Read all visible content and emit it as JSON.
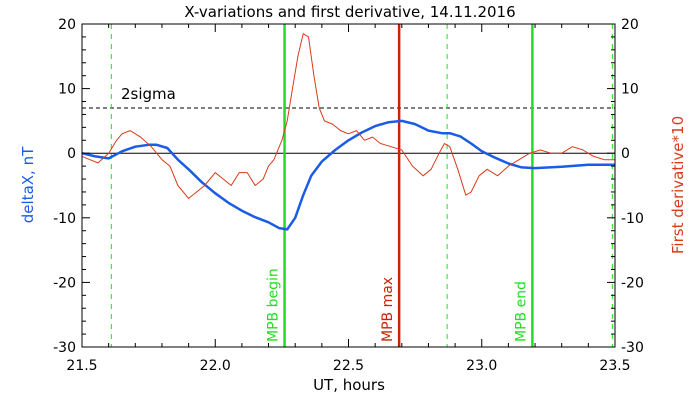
{
  "chart_data": {
    "type": "line",
    "title": "X-variations and first derivative, 14.11.2016",
    "xlabel": "UT, hours",
    "ylabel_left": "deltaX, nT",
    "ylabel_right": "First derivative*10",
    "xlim": [
      21.5,
      23.5
    ],
    "ylim": [
      -30,
      20
    ],
    "xticks": [
      "21.5",
      "22.0",
      "22.5",
      "23.0",
      "23.5"
    ],
    "yticks": [
      "-30",
      "-20",
      "-10",
      "0",
      "10",
      "20"
    ],
    "series": [
      {
        "name": "deltaX",
        "color": "#1a5ce6",
        "x": [
          21.5,
          21.55,
          21.6,
          21.65,
          21.7,
          21.75,
          21.78,
          21.82,
          21.86,
          21.9,
          21.95,
          22.0,
          22.05,
          22.1,
          22.15,
          22.2,
          22.24,
          22.27,
          22.3,
          22.33,
          22.36,
          22.4,
          22.45,
          22.5,
          22.55,
          22.6,
          22.65,
          22.7,
          22.75,
          22.8,
          22.85,
          22.88,
          22.92,
          22.96,
          23.0,
          23.05,
          23.1,
          23.15,
          23.2,
          23.3,
          23.4,
          23.5
        ],
        "values": [
          0,
          -0.5,
          -0.8,
          0.3,
          1.0,
          1.3,
          1.3,
          0.8,
          -1.0,
          -2.5,
          -4.5,
          -6.2,
          -7.7,
          -8.9,
          -9.9,
          -10.7,
          -11.6,
          -11.8,
          -10.0,
          -6.5,
          -3.5,
          -1.3,
          0.5,
          2.0,
          3.2,
          4.2,
          4.8,
          5.0,
          4.5,
          3.5,
          3.1,
          3.1,
          2.6,
          1.5,
          0.3,
          -0.7,
          -1.6,
          -2.2,
          -2.3,
          -2.1,
          -1.8,
          -1.8
        ]
      },
      {
        "name": "First derivative*10",
        "color": "#d93a1a",
        "x": [
          21.5,
          21.53,
          21.56,
          21.6,
          21.63,
          21.65,
          21.68,
          21.72,
          21.76,
          21.8,
          21.83,
          21.86,
          21.9,
          21.93,
          21.96,
          22.0,
          22.03,
          22.06,
          22.09,
          22.12,
          22.15,
          22.18,
          22.2,
          22.22,
          22.25,
          22.27,
          22.29,
          22.31,
          22.33,
          22.35,
          22.37,
          22.39,
          22.41,
          22.44,
          22.47,
          22.5,
          22.53,
          22.56,
          22.59,
          22.62,
          22.66,
          22.7,
          22.74,
          22.78,
          22.81,
          22.84,
          22.86,
          22.88,
          22.91,
          22.94,
          22.96,
          22.99,
          23.02,
          23.06,
          23.1,
          23.14,
          23.18,
          23.22,
          23.26,
          23.3,
          23.34,
          23.38,
          23.42,
          23.46,
          23.5
        ],
        "values": [
          -0.5,
          -1.0,
          -1.5,
          0.0,
          2.0,
          3.0,
          3.5,
          2.5,
          1.0,
          -1.0,
          -2.0,
          -5.0,
          -7.0,
          -6.0,
          -5.0,
          -3.0,
          -4.0,
          -5.0,
          -3.0,
          -3.0,
          -5.0,
          -4.0,
          -2.0,
          -1.0,
          2.0,
          5.0,
          10.0,
          15.0,
          18.5,
          18.0,
          12.0,
          7.0,
          5.0,
          4.5,
          3.5,
          3.0,
          3.5,
          2.0,
          2.5,
          1.5,
          1.0,
          0.5,
          -2.0,
          -3.5,
          -2.5,
          0.0,
          1.5,
          1.0,
          -2.5,
          -6.5,
          -6.0,
          -3.5,
          -2.5,
          -3.5,
          -2.0,
          -1.0,
          0.0,
          0.5,
          0.0,
          0.0,
          1.0,
          0.5,
          -0.5,
          -1.0,
          -1.0
        ]
      }
    ],
    "reference_lines": {
      "zero_level": 0,
      "sigma_level": 7,
      "sigma_label": "2sigma"
    },
    "markers": [
      {
        "x": 21.61,
        "label": "",
        "style": "dashed",
        "color": "#22dd22"
      },
      {
        "x": 22.26,
        "label": "MPB begin",
        "style": "solid",
        "color": "#22dd22"
      },
      {
        "x": 22.69,
        "label": "MPB max",
        "style": "solid",
        "color": "#cc2200"
      },
      {
        "x": 22.87,
        "label": "",
        "style": "dashed",
        "color": "#22dd22"
      },
      {
        "x": 23.19,
        "label": "MPB end",
        "style": "solid",
        "color": "#22dd22"
      },
      {
        "x": 23.49,
        "label": "",
        "style": "dashed",
        "color": "#22dd22"
      }
    ],
    "grid": false
  }
}
